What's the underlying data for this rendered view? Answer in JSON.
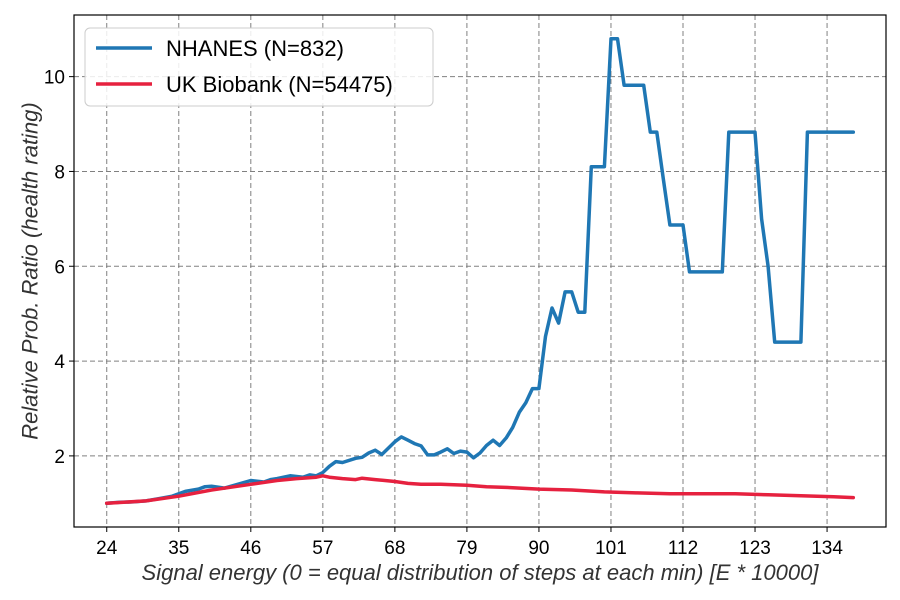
{
  "chart_data": {
    "type": "line",
    "title": "",
    "xlabel": "Signal energy (0 = equal distribution of steps at each min) [E * 10000]",
    "ylabel": "Relative Prob. Ratio (health rating)",
    "xlim": [
      19,
      143
    ],
    "ylim": [
      0.5,
      11.3
    ],
    "xticks": [
      24,
      35,
      46,
      57,
      68,
      79,
      90,
      101,
      112,
      123,
      134
    ],
    "yticks": [
      2,
      4,
      6,
      8,
      10
    ],
    "grid": true,
    "legend": "top-left",
    "series": [
      {
        "name": "NHANES (N=832)",
        "color": "#1f77b4",
        "x": [
          24,
          26,
          28,
          30,
          32,
          34,
          36,
          38,
          39,
          40,
          42,
          44,
          46,
          48,
          49,
          50,
          52,
          54,
          55,
          56,
          57,
          58,
          59,
          60,
          62,
          63,
          64,
          65,
          66,
          68,
          69,
          70,
          71,
          72,
          73,
          74,
          75,
          76,
          77,
          78,
          79,
          80,
          81,
          82,
          83,
          84,
          85,
          86,
          87,
          88,
          89,
          90,
          91,
          92,
          93,
          94,
          95,
          96,
          97,
          98,
          99,
          100,
          101,
          102,
          103,
          104,
          105,
          106,
          107,
          108,
          109,
          110,
          111,
          112,
          113,
          114,
          118,
          119,
          122,
          123,
          124,
          125,
          126,
          127,
          130,
          131,
          138
        ],
        "y": [
          1.0,
          1.02,
          1.03,
          1.05,
          1.1,
          1.15,
          1.25,
          1.3,
          1.35,
          1.36,
          1.32,
          1.4,
          1.48,
          1.45,
          1.5,
          1.52,
          1.58,
          1.55,
          1.6,
          1.58,
          1.65,
          1.78,
          1.88,
          1.86,
          1.95,
          1.97,
          2.06,
          2.12,
          2.03,
          2.3,
          2.4,
          2.33,
          2.26,
          2.21,
          2.02,
          2.02,
          2.08,
          2.15,
          2.05,
          2.1,
          2.08,
          1.96,
          2.06,
          2.22,
          2.33,
          2.22,
          2.38,
          2.6,
          2.92,
          3.12,
          3.42,
          3.42,
          4.52,
          5.12,
          4.8,
          5.46,
          5.46,
          5.03,
          5.03,
          8.1,
          8.1,
          8.1,
          10.8,
          10.8,
          9.82,
          9.82,
          9.82,
          9.82,
          8.83,
          8.83,
          7.83,
          6.87,
          6.87,
          6.87,
          5.88,
          5.88,
          5.88,
          8.83,
          8.83,
          8.83,
          7.0,
          6.0,
          4.4,
          4.4,
          4.4,
          8.83,
          8.83
        ]
      },
      {
        "name": "UK Biobank (N=54475)",
        "color": "#e6213f",
        "x": [
          24,
          30,
          35,
          40,
          46,
          50,
          53,
          56,
          57,
          58,
          60,
          62,
          63,
          65,
          68,
          70,
          72,
          75,
          79,
          82,
          86,
          90,
          95,
          100,
          105,
          110,
          115,
          120,
          125,
          130,
          135,
          138
        ],
        "y": [
          1.0,
          1.05,
          1.15,
          1.28,
          1.4,
          1.48,
          1.52,
          1.55,
          1.58,
          1.55,
          1.52,
          1.5,
          1.53,
          1.5,
          1.46,
          1.42,
          1.4,
          1.4,
          1.38,
          1.35,
          1.33,
          1.3,
          1.28,
          1.24,
          1.22,
          1.2,
          1.2,
          1.2,
          1.18,
          1.16,
          1.14,
          1.12
        ]
      }
    ]
  }
}
